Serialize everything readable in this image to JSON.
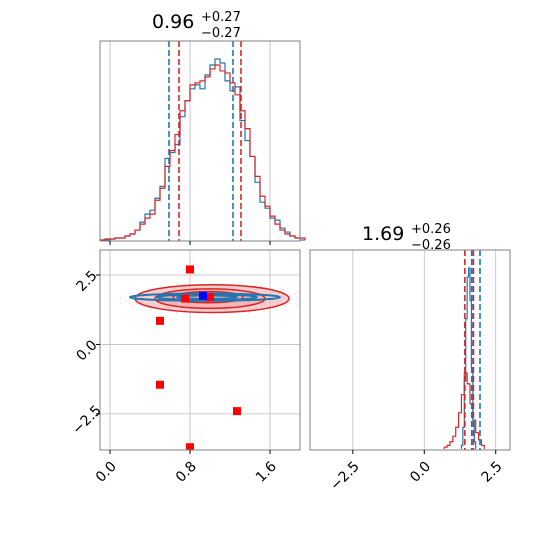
{
  "chart_data": {
    "type": "corner",
    "colors": {
      "blue": "#1f77b4",
      "red": "#d62728",
      "red_fill": "#f4a6a6",
      "pink_fill": "#f0d0e8",
      "marker_blue": "#0000ff",
      "marker_red": "#ff0000"
    },
    "panels": {
      "hist_x": {
        "title_value": "0.96",
        "title_plus": "+0.27",
        "title_minus": "−0.27",
        "xlim": [
          -0.1,
          1.9
        ],
        "quantile_lines": {
          "blue": [
            0.59,
            1.23
          ],
          "red": [
            0.69,
            1.31
          ]
        },
        "blue_bins": {
          "start": -0.1,
          "width": 0.05,
          "counts": [
            0,
            0,
            0.5,
            1,
            1,
            2,
            3,
            5,
            9,
            13,
            15,
            21,
            27,
            41,
            44,
            48,
            62,
            70,
            76,
            78,
            76,
            83,
            88,
            91,
            89,
            80,
            75,
            77,
            60,
            50,
            42,
            29,
            19,
            16,
            11,
            10,
            6,
            4,
            2,
            1,
            0
          ]
        },
        "red_bins": {
          "start": -0.1,
          "width": 0.05,
          "counts": [
            0,
            0.5,
            0.5,
            1,
            1,
            2,
            3,
            5,
            8,
            11,
            13,
            20,
            26,
            37,
            45,
            53,
            65,
            70,
            78,
            79,
            80,
            82,
            86,
            88,
            85,
            84,
            79,
            73,
            65,
            56,
            42,
            32,
            22,
            17,
            12,
            8,
            5,
            3,
            2,
            1,
            1
          ]
        }
      },
      "hist_y": {
        "title_value": "1.69",
        "title_plus": "+0.26",
        "title_minus": "−0.26",
        "xlim": [
          -4.0,
          3.0
        ],
        "xticks": [
          -2.5,
          0.0,
          2.5
        ],
        "xtick_labels": [
          "−2.5",
          "0.0",
          "2.5"
        ],
        "quantile_lines": {
          "blue": [
            1.66,
            1.95
          ],
          "red": [
            1.42,
            1.72
          ]
        },
        "blue_bins": {
          "start": 1.3,
          "width": 0.05,
          "counts": [
            0.02,
            0.12,
            0.38,
            0.72,
            0.95,
            1.0,
            0.82,
            0.45,
            0.16,
            0.04
          ]
        },
        "red_bins": {
          "start": 0.7,
          "width": 0.1,
          "counts": [
            0.01,
            0.02,
            0.04,
            0.07,
            0.12,
            0.2,
            0.3,
            0.42,
            0.36,
            0.25,
            0.16,
            0.09,
            0.05,
            0.02
          ]
        }
      },
      "scatter_2d": {
        "xlim": [
          -0.1,
          1.9
        ],
        "ylim": [
          -3.8,
          3.4
        ],
        "xticks": [
          0.0,
          0.8,
          1.6
        ],
        "xtick_labels": [
          "0.0",
          "0.8",
          "1.6"
        ],
        "yticks": [
          -2.5,
          0.0,
          2.5
        ],
        "ytick_labels": [
          "−2.5",
          "0.0",
          "2.5"
        ],
        "blue_contours": [
          {
            "cx": 0.95,
            "cy": 1.7,
            "rx": 0.75,
            "ry": 0.13
          },
          {
            "cx": 0.97,
            "cy": 1.7,
            "rx": 0.5,
            "ry": 0.1
          },
          {
            "cx": 0.97,
            "cy": 1.7,
            "rx": 0.3,
            "ry": 0.06
          }
        ],
        "red_contours": [
          {
            "cx": 1.02,
            "cy": 1.65,
            "rx": 0.77,
            "ry": 0.5
          },
          {
            "cx": 1.0,
            "cy": 1.65,
            "rx": 0.55,
            "ry": 0.35
          },
          {
            "cx": 0.98,
            "cy": 1.7,
            "rx": 0.35,
            "ry": 0.2
          }
        ],
        "red_markers": [
          {
            "x": 0.8,
            "y": 2.7
          },
          {
            "x": 0.75,
            "y": 1.65
          },
          {
            "x": 1.0,
            "y": 1.7
          },
          {
            "x": 0.5,
            "y": 0.85
          },
          {
            "x": 0.5,
            "y": -1.45
          },
          {
            "x": 1.27,
            "y": -2.4
          },
          {
            "x": 0.8,
            "y": -3.7
          }
        ],
        "blue_markers": [
          {
            "x": 0.93,
            "y": 1.75
          }
        ]
      }
    }
  }
}
